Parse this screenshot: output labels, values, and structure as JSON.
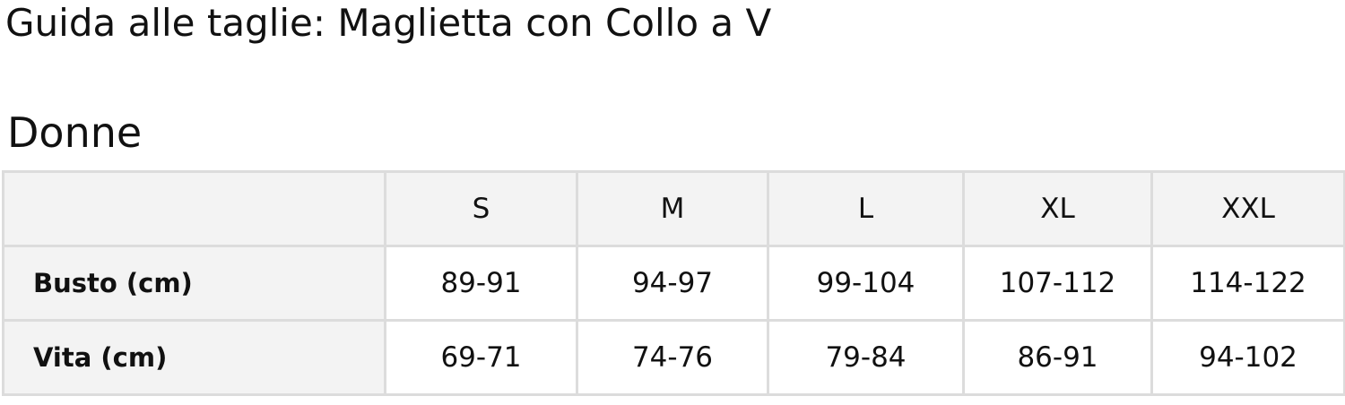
{
  "title": "Guida alle taglie: Maglietta con Collo a V",
  "section": "Donne",
  "table": {
    "header": [
      "",
      "S",
      "M",
      "L",
      "XL",
      "XXL"
    ],
    "rows": [
      {
        "label": "Busto (cm)",
        "values": [
          "89-91",
          "94-97",
          "99-104",
          "107-112",
          "114-122"
        ]
      },
      {
        "label": "Vita (cm)",
        "values": [
          "69-71",
          "74-76",
          "79-84",
          "86-91",
          "94-102"
        ]
      }
    ]
  }
}
